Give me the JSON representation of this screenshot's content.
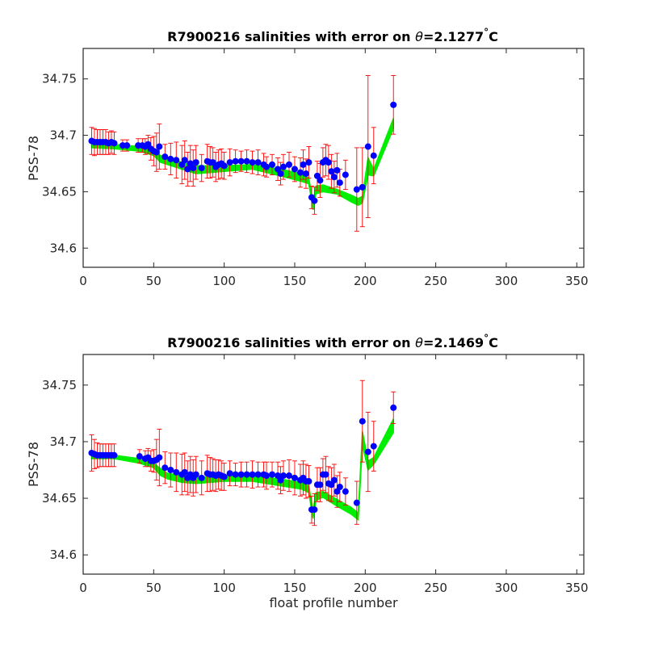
{
  "colors": {
    "marker": "#0000ff",
    "errorbar": "#ff0000",
    "band": "#00ee00",
    "axis": "#262626"
  },
  "chart_data": [
    {
      "type": "scatter",
      "title_prefix": "R7900216 salinities with error on ",
      "title_theta": "θ",
      "title_value": "=2.1277",
      "title_degree": "°",
      "title_unit": "C",
      "xlabel": "",
      "ylabel": "PSS-78",
      "xlim": [
        0,
        355
      ],
      "ylim": [
        34.583,
        34.777
      ],
      "xticks": [
        0,
        50,
        100,
        150,
        200,
        250,
        300,
        350
      ],
      "yticks": [
        34.6,
        34.65,
        34.7,
        34.75
      ],
      "ytick_labels": [
        "34.6",
        "34.65",
        "34.7",
        "34.75"
      ],
      "grid": false,
      "series": [
        {
          "x": [
            6,
            8,
            10,
            12,
            14,
            16,
            18,
            20,
            22,
            28,
            31,
            39,
            42,
            44,
            46,
            48,
            50,
            52,
            54,
            58,
            62,
            66,
            70,
            72,
            74,
            76,
            78,
            80,
            84,
            88,
            90,
            92,
            94,
            96,
            98,
            100,
            104,
            108,
            112,
            116,
            120,
            124,
            128,
            130,
            134,
            138,
            140,
            142,
            146,
            150,
            154,
            156,
            158,
            160,
            162,
            164,
            166,
            168,
            170,
            172,
            174,
            176,
            178,
            180,
            182,
            186,
            194,
            198,
            202,
            206,
            220
          ],
          "y": [
            34.695,
            34.694,
            34.694,
            34.694,
            34.694,
            34.694,
            34.693,
            34.694,
            34.693,
            34.691,
            34.691,
            34.691,
            34.691,
            34.69,
            34.692,
            34.688,
            34.686,
            34.685,
            34.69,
            34.681,
            34.679,
            34.678,
            34.674,
            34.678,
            34.67,
            34.675,
            34.671,
            34.676,
            34.671,
            34.677,
            34.676,
            34.676,
            34.672,
            34.674,
            34.675,
            34.673,
            34.676,
            34.677,
            34.677,
            34.677,
            34.676,
            34.676,
            34.674,
            34.672,
            34.674,
            34.67,
            34.666,
            34.672,
            34.674,
            34.67,
            34.667,
            34.674,
            34.666,
            34.676,
            34.645,
            34.642,
            34.664,
            34.66,
            34.676,
            34.678,
            34.676,
            34.668,
            34.663,
            34.669,
            34.658,
            34.665,
            34.652,
            34.654,
            34.69,
            34.682,
            34.727
          ],
          "err": [
            0.012,
            0.012,
            0.011,
            0.011,
            0.011,
            0.011,
            0.01,
            0.01,
            0.01,
            0.005,
            0.005,
            0.006,
            0.006,
            0.007,
            0.008,
            0.01,
            0.013,
            0.017,
            0.02,
            0.011,
            0.014,
            0.016,
            0.017,
            0.017,
            0.015,
            0.016,
            0.016,
            0.015,
            0.012,
            0.015,
            0.014,
            0.013,
            0.013,
            0.013,
            0.013,
            0.012,
            0.012,
            0.01,
            0.009,
            0.01,
            0.01,
            0.011,
            0.01,
            0.009,
            0.009,
            0.01,
            0.01,
            0.011,
            0.011,
            0.011,
            0.013,
            0.013,
            0.013,
            0.014,
            0.01,
            0.012,
            0.013,
            0.015,
            0.013,
            0.014,
            0.015,
            0.015,
            0.014,
            0.015,
            0.012,
            0.013,
            0.037,
            0.035,
            0.063,
            0.025,
            0.026
          ]
        }
      ],
      "band": {
        "x": [
          6,
          22,
          40,
          50,
          55,
          60,
          70,
          80,
          100,
          120,
          140,
          155,
          160,
          163,
          165,
          170,
          180,
          190,
          195,
          198,
          202,
          206,
          220
        ],
        "low": [
          34.689,
          34.688,
          34.686,
          34.682,
          34.676,
          34.674,
          34.67,
          34.666,
          34.668,
          34.67,
          34.664,
          34.659,
          34.657,
          34.634,
          34.648,
          34.65,
          34.648,
          34.641,
          34.638,
          34.64,
          34.665,
          34.664,
          34.706
        ],
        "high": [
          34.694,
          34.692,
          34.69,
          34.686,
          34.682,
          34.68,
          34.676,
          34.673,
          34.673,
          34.674,
          34.67,
          34.666,
          34.662,
          34.64,
          34.655,
          34.656,
          34.652,
          34.647,
          34.644,
          34.646,
          34.68,
          34.67,
          34.715
        ]
      }
    },
    {
      "type": "scatter",
      "title_prefix": "R7900216 salinities with error on ",
      "title_theta": "θ",
      "title_value": "=2.1469",
      "title_degree": "°",
      "title_unit": "C",
      "xlabel": "float profile number",
      "ylabel": "PSS-78",
      "xlim": [
        0,
        355
      ],
      "ylim": [
        34.583,
        34.777
      ],
      "xticks": [
        0,
        50,
        100,
        150,
        200,
        250,
        300,
        350
      ],
      "yticks": [
        34.6,
        34.65,
        34.7,
        34.75
      ],
      "ytick_labels": [
        "34.6",
        "34.65",
        "34.7",
        "34.75"
      ],
      "grid": false,
      "series": [
        {
          "x": [
            6,
            8,
            10,
            12,
            14,
            16,
            18,
            20,
            22,
            40,
            44,
            46,
            48,
            50,
            52,
            54,
            58,
            62,
            66,
            70,
            72,
            74,
            76,
            78,
            80,
            84,
            88,
            90,
            92,
            94,
            96,
            98,
            100,
            104,
            108,
            112,
            116,
            120,
            124,
            128,
            130,
            134,
            138,
            140,
            142,
            146,
            150,
            154,
            156,
            158,
            160,
            162,
            164,
            166,
            168,
            170,
            172,
            174,
            176,
            178,
            180,
            182,
            186,
            194,
            198,
            202,
            206,
            220
          ],
          "y": [
            34.69,
            34.689,
            34.688,
            34.688,
            34.688,
            34.688,
            34.688,
            34.688,
            34.688,
            34.687,
            34.685,
            34.686,
            34.683,
            34.683,
            34.684,
            34.686,
            34.677,
            34.675,
            34.673,
            34.671,
            34.673,
            34.668,
            34.671,
            34.668,
            34.671,
            34.668,
            34.672,
            34.671,
            34.671,
            34.67,
            34.671,
            34.67,
            34.669,
            34.672,
            34.671,
            34.671,
            34.671,
            34.671,
            34.671,
            34.671,
            34.67,
            34.671,
            34.67,
            34.666,
            34.67,
            34.67,
            34.668,
            34.666,
            34.668,
            34.665,
            34.665,
            34.64,
            34.64,
            34.662,
            34.662,
            34.671,
            34.671,
            34.663,
            34.662,
            34.666,
            34.656,
            34.66,
            34.656,
            34.646,
            34.718,
            34.691,
            34.696,
            34.73
          ]
        }
      ],
      "err": [
        0.016,
        0.013,
        0.011,
        0.01,
        0.01,
        0.01,
        0.01,
        0.01,
        0.01,
        0.006,
        0.007,
        0.008,
        0.009,
        0.01,
        0.018,
        0.025,
        0.014,
        0.015,
        0.017,
        0.018,
        0.017,
        0.015,
        0.016,
        0.016,
        0.016,
        0.015,
        0.016,
        0.015,
        0.014,
        0.014,
        0.013,
        0.013,
        0.012,
        0.011,
        0.01,
        0.011,
        0.011,
        0.012,
        0.011,
        0.011,
        0.012,
        0.011,
        0.012,
        0.012,
        0.013,
        0.014,
        0.015,
        0.014,
        0.015,
        0.015,
        0.014,
        0.012,
        0.014,
        0.015,
        0.015,
        0.014,
        0.016,
        0.015,
        0.015,
        0.014,
        0.014,
        0.013,
        0.012,
        0.019,
        0.036,
        0.035,
        0.022,
        0.014
      ],
      "band": {
        "x": [
          6,
          22,
          40,
          50,
          55,
          60,
          70,
          80,
          100,
          120,
          140,
          155,
          160,
          163,
          165,
          170,
          180,
          190,
          195,
          198,
          202,
          206,
          220
        ],
        "low": [
          34.685,
          34.685,
          34.681,
          34.677,
          34.67,
          34.667,
          34.664,
          34.663,
          34.665,
          34.665,
          34.661,
          34.658,
          34.655,
          34.632,
          34.648,
          34.651,
          34.643,
          34.636,
          34.631,
          34.697,
          34.675,
          34.68,
          34.708
        ],
        "high": [
          34.689,
          34.688,
          34.685,
          34.681,
          34.676,
          34.672,
          34.67,
          34.668,
          34.67,
          34.67,
          34.667,
          34.664,
          34.661,
          34.639,
          34.655,
          34.656,
          34.649,
          34.642,
          34.637,
          34.709,
          34.683,
          34.686,
          34.72
        ]
      }
    }
  ]
}
